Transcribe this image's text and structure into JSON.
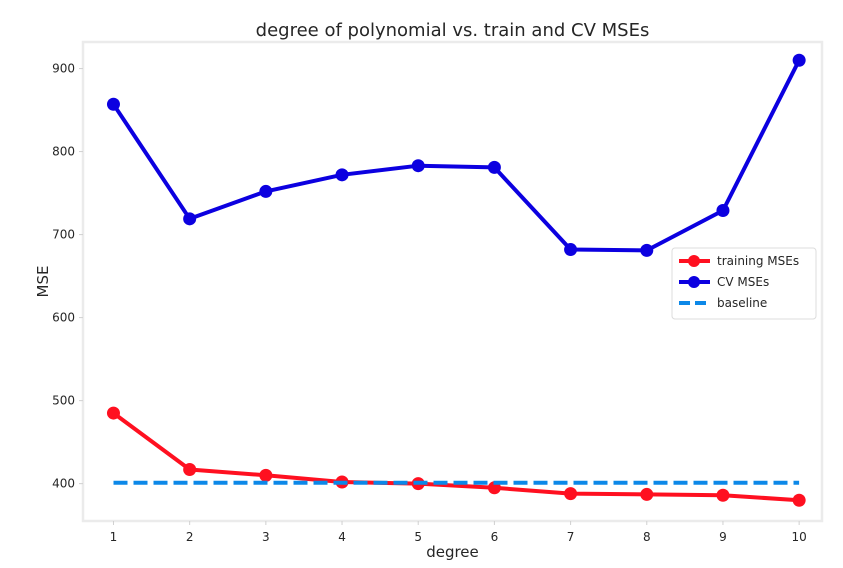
{
  "chart_data": {
    "type": "line",
    "title": "degree of polynomial vs. train and CV MSEs",
    "xlabel": "degree",
    "ylabel": "MSE",
    "x": [
      1,
      2,
      3,
      4,
      5,
      6,
      7,
      8,
      9,
      10
    ],
    "xlim": [
      0.6,
      10.3
    ],
    "ylim": [
      355,
      932
    ],
    "xticks": [
      1,
      2,
      3,
      4,
      5,
      6,
      7,
      8,
      9,
      10
    ],
    "yticks": [
      400,
      500,
      600,
      700,
      800,
      900
    ],
    "grid": false,
    "legend_position": "right",
    "series": [
      {
        "name": "training MSEs",
        "color": "#ff1020",
        "style": "solid-markers",
        "values": [
          485,
          417,
          410,
          402,
          400,
          395,
          388,
          387,
          386,
          380
        ]
      },
      {
        "name": "CV MSEs",
        "color": "#0c00e0",
        "style": "solid-markers",
        "values": [
          857,
          719,
          752,
          772,
          783,
          781,
          682,
          681,
          729,
          910
        ]
      },
      {
        "name": "baseline",
        "color": "#0c88e8",
        "style": "dashed",
        "values": [
          401,
          401,
          401,
          401,
          401,
          401,
          401,
          401,
          401,
          401
        ]
      }
    ]
  }
}
